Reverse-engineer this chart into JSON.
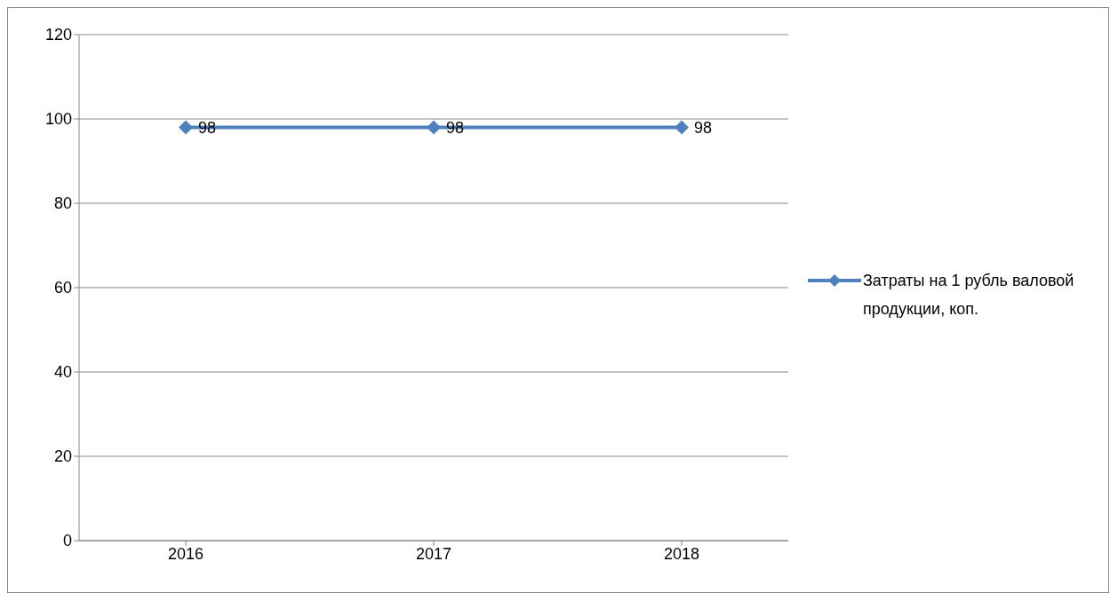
{
  "chart_data": {
    "type": "line",
    "categories": [
      "2016",
      "2017",
      "2018"
    ],
    "series": [
      {
        "name": "Затраты на 1 рубль валовой продукции, коп.",
        "color": "#4f81bd",
        "values": [
          98,
          98,
          98
        ]
      }
    ],
    "ylim": [
      0,
      120
    ],
    "yticks": [
      0,
      20,
      40,
      60,
      80,
      100,
      120
    ],
    "grid": "y",
    "legend": "right",
    "marker": "diamond",
    "line_style": "solid",
    "data_labels": true
  }
}
